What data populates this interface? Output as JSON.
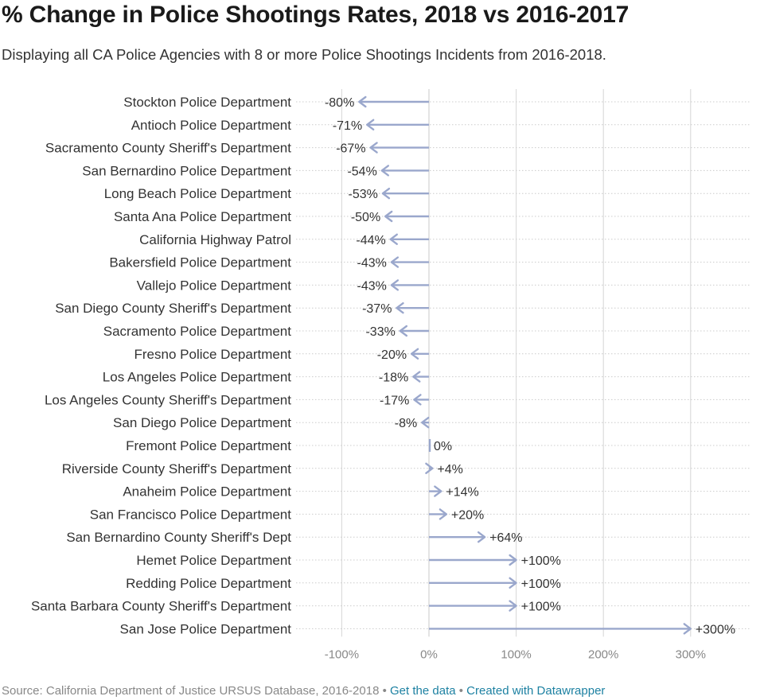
{
  "title": "% Change in Police Shootings Rates, 2018 vs 2016-2017",
  "subtitle": "Displaying all CA Police Agencies with 8 or more Police Shootings Incidents from 2016-2018.",
  "footer": {
    "source": "Source: California Department of Justice URSUS Database, 2016-2018",
    "separator": " • ",
    "get_data": "Get the data",
    "created_with": "Created with Datawrapper"
  },
  "colors": {
    "arrow": "#9aa7cc",
    "grid": "#d6d6d6",
    "dots": "#cccccc",
    "zero_line": "#c8c8c8",
    "text": "#333333",
    "muted": "#888888",
    "link": "#1d81a2"
  },
  "chart_data": {
    "type": "arrow",
    "title": "% Change in Police Shootings Rates, 2018 vs 2016-2017",
    "subtitle": "Displaying all CA Police Agencies with 8 or more Police Shootings Incidents from 2016-2018.",
    "xlim": [
      -100,
      300
    ],
    "x_ticks": [
      -100,
      0,
      100,
      200,
      300
    ],
    "x_tick_labels": [
      "-100%",
      "0%",
      "100%",
      "200%",
      "300%"
    ],
    "grid": true,
    "arrow_start": 0,
    "categories": [
      "Stockton Police Department",
      "Antioch Police Department",
      "Sacramento County Sheriff's Department",
      "San Bernardino Police Department",
      "Long Beach Police Department",
      "Santa Ana Police Department",
      "California Highway Patrol",
      "Bakersfield Police Department",
      "Vallejo Police Department",
      "San Diego County Sheriff's Department",
      "Sacramento Police Department",
      "Fresno Police Department",
      "Los Angeles Police Department",
      "Los Angeles County Sheriff's Department",
      "San Diego Police Department",
      "Fremont Police Department",
      "Riverside County Sheriff's Department",
      "Anaheim Police Department",
      "San Francisco Police Department",
      "San Bernardino County Sheriff's Dept",
      "Hemet Police Department",
      "Redding Police Department",
      "Santa Barbara County Sheriff's Department",
      "San Jose Police Department"
    ],
    "values": [
      -80,
      -71,
      -67,
      -54,
      -53,
      -50,
      -44,
      -43,
      -43,
      -37,
      -33,
      -20,
      -18,
      -17,
      -8,
      0,
      4,
      14,
      20,
      64,
      100,
      100,
      100,
      300
    ],
    "value_labels": [
      "-80%",
      "-71%",
      "-67%",
      "-54%",
      "-53%",
      "-50%",
      "-44%",
      "-43%",
      "-43%",
      "-37%",
      "-33%",
      "-20%",
      "-18%",
      "-17%",
      "-8%",
      "0%",
      "+4%",
      "+14%",
      "+20%",
      "+64%",
      "+100%",
      "+100%",
      "+100%",
      "+300%"
    ]
  }
}
